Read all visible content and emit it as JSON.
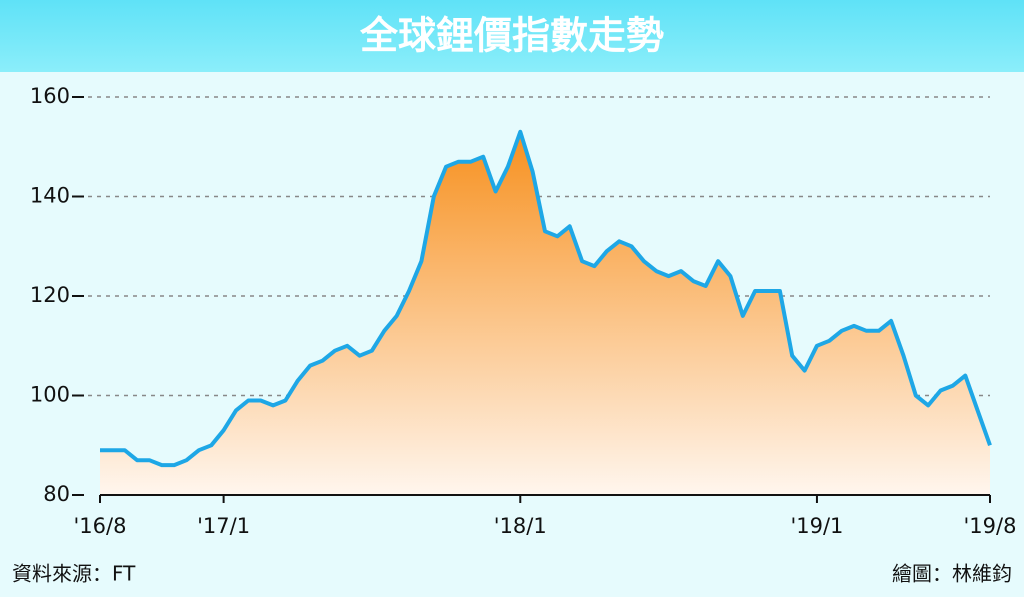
{
  "chart_data": {
    "type": "area-line",
    "title": "全球鋰價指數走勢",
    "source": "資料來源：FT",
    "credit": "繪圖：林維鈞",
    "categories": [
      "'16/8",
      null,
      null,
      null,
      null,
      null,
      null,
      null,
      null,
      null,
      "'17/1",
      null,
      null,
      null,
      null,
      null,
      null,
      null,
      null,
      null,
      null,
      null,
      null,
      null,
      null,
      null,
      null,
      null,
      null,
      null,
      null,
      null,
      null,
      null,
      "'18/1",
      null,
      null,
      null,
      null,
      null,
      null,
      null,
      null,
      null,
      null,
      null,
      null,
      null,
      null,
      null,
      null,
      null,
      null,
      null,
      null,
      null,
      null,
      null,
      "'19/1",
      null,
      null,
      null,
      null,
      null,
      null,
      null,
      null,
      null,
      null,
      null,
      null,
      null,
      "'19/8"
    ],
    "values": [
      89,
      89,
      89,
      87,
      87,
      86,
      86,
      87,
      89,
      90,
      93,
      97,
      99,
      99,
      98,
      99,
      103,
      106,
      107,
      109,
      110,
      108,
      109,
      113,
      116,
      121,
      127,
      140,
      146,
      147,
      147,
      148,
      141,
      146,
      153,
      145,
      133,
      132,
      134,
      127,
      126,
      129,
      131,
      130,
      127,
      125,
      124,
      125,
      123,
      122,
      127,
      124,
      116,
      121,
      121,
      121,
      108,
      105,
      110,
      111,
      113,
      114,
      113,
      113,
      115,
      108,
      100,
      98,
      101,
      102,
      104,
      97,
      90
    ],
    "color": "#1ea7e6",
    "area_colors": [
      "#f7901e",
      "#fff6ee"
    ],
    "ylim": [
      80,
      160
    ],
    "yticks": [
      80,
      100,
      120,
      140,
      160
    ],
    "grid": true
  }
}
